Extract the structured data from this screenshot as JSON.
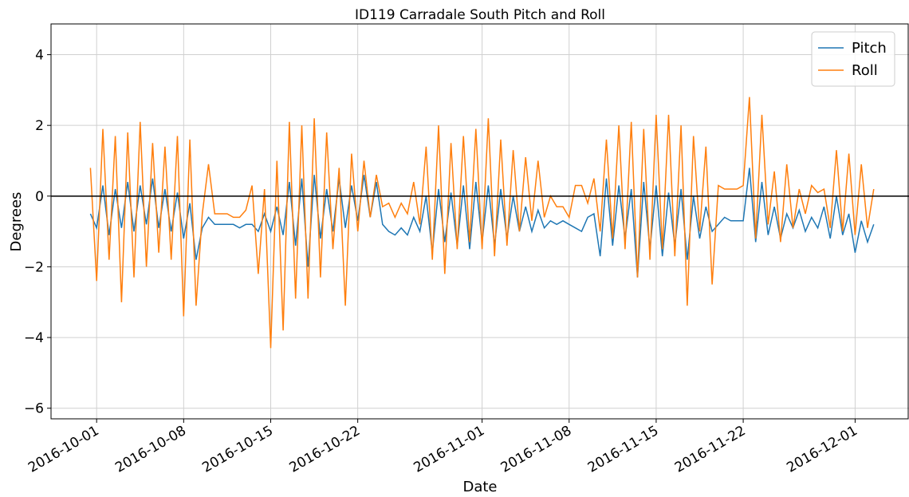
{
  "chart_data": {
    "type": "line",
    "title": "ID119 Carradale South Pitch and Roll",
    "xlabel": "Date",
    "ylabel": "Degrees",
    "x": [
      "2016-09-30 12:00",
      "2016-10-01 00:00",
      "2016-10-01 12:00",
      "2016-10-02 00:00",
      "2016-10-02 12:00",
      "2016-10-03 00:00",
      "2016-10-03 12:00",
      "2016-10-04 00:00",
      "2016-10-04 12:00",
      "2016-10-05 00:00",
      "2016-10-05 12:00",
      "2016-10-06 00:00",
      "2016-10-06 12:00",
      "2016-10-07 00:00",
      "2016-10-07 12:00",
      "2016-10-08 00:00",
      "2016-10-08 12:00",
      "2016-10-09 00:00",
      "2016-10-09 12:00",
      "2016-10-10 00:00",
      "2016-10-10 12:00",
      "2016-10-11 00:00",
      "2016-10-11 12:00",
      "2016-10-12 00:00",
      "2016-10-12 12:00",
      "2016-10-13 00:00",
      "2016-10-13 12:00",
      "2016-10-14 00:00",
      "2016-10-14 12:00",
      "2016-10-15 00:00",
      "2016-10-15 12:00",
      "2016-10-16 00:00",
      "2016-10-16 12:00",
      "2016-10-17 00:00",
      "2016-10-17 12:00",
      "2016-10-18 00:00",
      "2016-10-18 12:00",
      "2016-10-19 00:00",
      "2016-10-19 12:00",
      "2016-10-20 00:00",
      "2016-10-20 12:00",
      "2016-10-21 00:00",
      "2016-10-21 12:00",
      "2016-10-22 00:00",
      "2016-10-22 12:00",
      "2016-10-23 00:00",
      "2016-10-23 12:00",
      "2016-10-24 00:00",
      "2016-10-24 12:00",
      "2016-10-25 00:00",
      "2016-10-25 12:00",
      "2016-10-26 00:00",
      "2016-10-26 12:00",
      "2016-10-27 00:00",
      "2016-10-27 12:00",
      "2016-10-28 00:00",
      "2016-10-28 12:00",
      "2016-10-29 00:00",
      "2016-10-29 12:00",
      "2016-10-30 00:00",
      "2016-10-30 12:00",
      "2016-10-31 00:00",
      "2016-10-31 12:00",
      "2016-11-01 00:00",
      "2016-11-01 12:00",
      "2016-11-02 00:00",
      "2016-11-02 12:00",
      "2016-11-03 00:00",
      "2016-11-03 12:00",
      "2016-11-04 00:00",
      "2016-11-04 12:00",
      "2016-11-05 00:00",
      "2016-11-05 12:00",
      "2016-11-06 00:00",
      "2016-11-06 12:00",
      "2016-11-07 00:00",
      "2016-11-07 12:00",
      "2016-11-08 00:00",
      "2016-11-08 12:00",
      "2016-11-09 00:00",
      "2016-11-09 12:00",
      "2016-11-10 00:00",
      "2016-11-10 12:00",
      "2016-11-11 00:00",
      "2016-11-11 12:00",
      "2016-11-12 00:00",
      "2016-11-12 12:00",
      "2016-11-13 00:00",
      "2016-11-13 12:00",
      "2016-11-14 00:00",
      "2016-11-14 12:00",
      "2016-11-15 00:00",
      "2016-11-15 12:00",
      "2016-11-16 00:00",
      "2016-11-16 12:00",
      "2016-11-17 00:00",
      "2016-11-17 12:00",
      "2016-11-18 00:00",
      "2016-11-18 12:00",
      "2016-11-19 00:00",
      "2016-11-19 12:00",
      "2016-11-20 00:00",
      "2016-11-20 12:00",
      "2016-11-21 00:00",
      "2016-11-21 12:00",
      "2016-11-22 00:00",
      "2016-11-22 12:00",
      "2016-11-23 00:00",
      "2016-11-23 12:00",
      "2016-11-24 00:00",
      "2016-11-24 12:00",
      "2016-11-25 00:00",
      "2016-11-25 12:00",
      "2016-11-26 00:00",
      "2016-11-26 12:00",
      "2016-11-27 00:00",
      "2016-11-27 12:00",
      "2016-11-28 00:00",
      "2016-11-28 12:00",
      "2016-11-29 00:00",
      "2016-11-29 12:00",
      "2016-11-30 00:00",
      "2016-11-30 12:00",
      "2016-12-01 00:00",
      "2016-12-01 12:00",
      "2016-12-02 00:00",
      "2016-12-02 12:00"
    ],
    "series": [
      {
        "name": "Pitch",
        "color": "#1f77b4",
        "values": [
          -0.5,
          -0.9,
          0.3,
          -1.1,
          0.2,
          -0.9,
          0.4,
          -1.0,
          0.3,
          -0.8,
          0.5,
          -0.9,
          0.2,
          -1.0,
          0.1,
          -1.2,
          -0.2,
          -1.8,
          -0.9,
          -0.6,
          -0.8,
          -0.8,
          -0.8,
          -0.8,
          -0.9,
          -0.8,
          -0.8,
          -1.0,
          -0.5,
          -1.0,
          -0.3,
          -1.1,
          0.4,
          -1.4,
          0.5,
          -2.0,
          0.6,
          -1.2,
          0.2,
          -1.0,
          0.5,
          -0.9,
          0.3,
          -0.7,
          0.6,
          -0.6,
          0.4,
          -0.8,
          -1.0,
          -1.1,
          -0.9,
          -1.1,
          -0.6,
          -1.0,
          0.0,
          -1.6,
          0.2,
          -1.3,
          0.1,
          -1.4,
          0.3,
          -1.5,
          0.4,
          -1.3,
          0.3,
          -1.4,
          0.2,
          -1.2,
          0.0,
          -1.0,
          -0.3,
          -1.0,
          -0.4,
          -0.9,
          -0.7,
          -0.8,
          -0.7,
          -0.8,
          -0.9,
          -1.0,
          -0.6,
          -0.5,
          -1.7,
          0.5,
          -1.4,
          0.3,
          -1.2,
          0.2,
          -2.3,
          0.4,
          -1.5,
          0.3,
          -1.7,
          0.1,
          -1.4,
          0.2,
          -1.8,
          0.0,
          -1.2,
          -0.3,
          -1.0,
          -0.8,
          -0.6,
          -0.7,
          -0.7,
          -0.7,
          0.8,
          -1.3,
          0.4,
          -1.1,
          -0.3,
          -1.2,
          -0.5,
          -0.9,
          -0.4,
          -1.0,
          -0.6,
          -0.9,
          -0.3,
          -1.2,
          0.0,
          -1.1,
          -0.5,
          -1.6,
          -0.7,
          -1.3,
          -0.8
        ]
      },
      {
        "name": "Roll",
        "color": "#ff7f0e",
        "values": [
          0.8,
          -2.4,
          1.9,
          -1.8,
          1.7,
          -3.0,
          1.8,
          -2.3,
          2.1,
          -2.0,
          1.5,
          -1.6,
          1.4,
          -1.8,
          1.7,
          -3.4,
          1.6,
          -3.1,
          -0.5,
          0.9,
          -0.5,
          -0.5,
          -0.5,
          -0.6,
          -0.6,
          -0.4,
          0.3,
          -2.2,
          0.2,
          -4.3,
          1.0,
          -3.8,
          2.1,
          -2.9,
          2.0,
          -2.9,
          2.2,
          -2.3,
          1.8,
          -1.5,
          0.8,
          -3.1,
          1.2,
          -1.0,
          1.0,
          -0.6,
          0.6,
          -0.3,
          -0.2,
          -0.6,
          -0.2,
          -0.5,
          0.4,
          -0.8,
          1.4,
          -1.8,
          2.0,
          -2.2,
          1.5,
          -1.5,
          1.7,
          -1.3,
          1.9,
          -1.5,
          2.2,
          -1.7,
          1.6,
          -1.4,
          1.3,
          -1.0,
          1.1,
          -0.7,
          1.0,
          -0.6,
          0.0,
          -0.3,
          -0.3,
          -0.6,
          0.3,
          0.3,
          -0.2,
          0.5,
          -1.0,
          1.6,
          -1.2,
          2.0,
          -1.5,
          2.1,
          -2.3,
          1.9,
          -1.8,
          2.3,
          -1.5,
          2.3,
          -1.7,
          2.0,
          -3.1,
          1.7,
          -1.0,
          1.4,
          -2.5,
          0.3,
          0.2,
          0.2,
          0.2,
          0.3,
          2.8,
          -1.2,
          2.3,
          -0.8,
          0.7,
          -1.3,
          0.9,
          -0.9,
          0.2,
          -0.5,
          0.3,
          0.1,
          0.2,
          -0.9,
          1.3,
          -1.0,
          1.2,
          -1.1,
          0.9,
          -0.9,
          0.2
        ]
      }
    ],
    "xlim": [
      "2016-09-27 08:00",
      "2016-12-05 08:00"
    ],
    "xticks": [
      "2016-10-01",
      "2016-10-08",
      "2016-10-15",
      "2016-10-22",
      "2016-11-01",
      "2016-11-08",
      "2016-11-15",
      "2016-11-22",
      "2016-12-01"
    ],
    "ylim": [
      -6.3,
      4.87
    ],
    "yticks": [
      {
        "value": -6,
        "label": "−6"
      },
      {
        "value": -4,
        "label": "−4"
      },
      {
        "value": -2,
        "label": "−2"
      },
      0,
      2,
      4
    ],
    "reference_line": 0,
    "grid": true,
    "legend": "upper right"
  }
}
